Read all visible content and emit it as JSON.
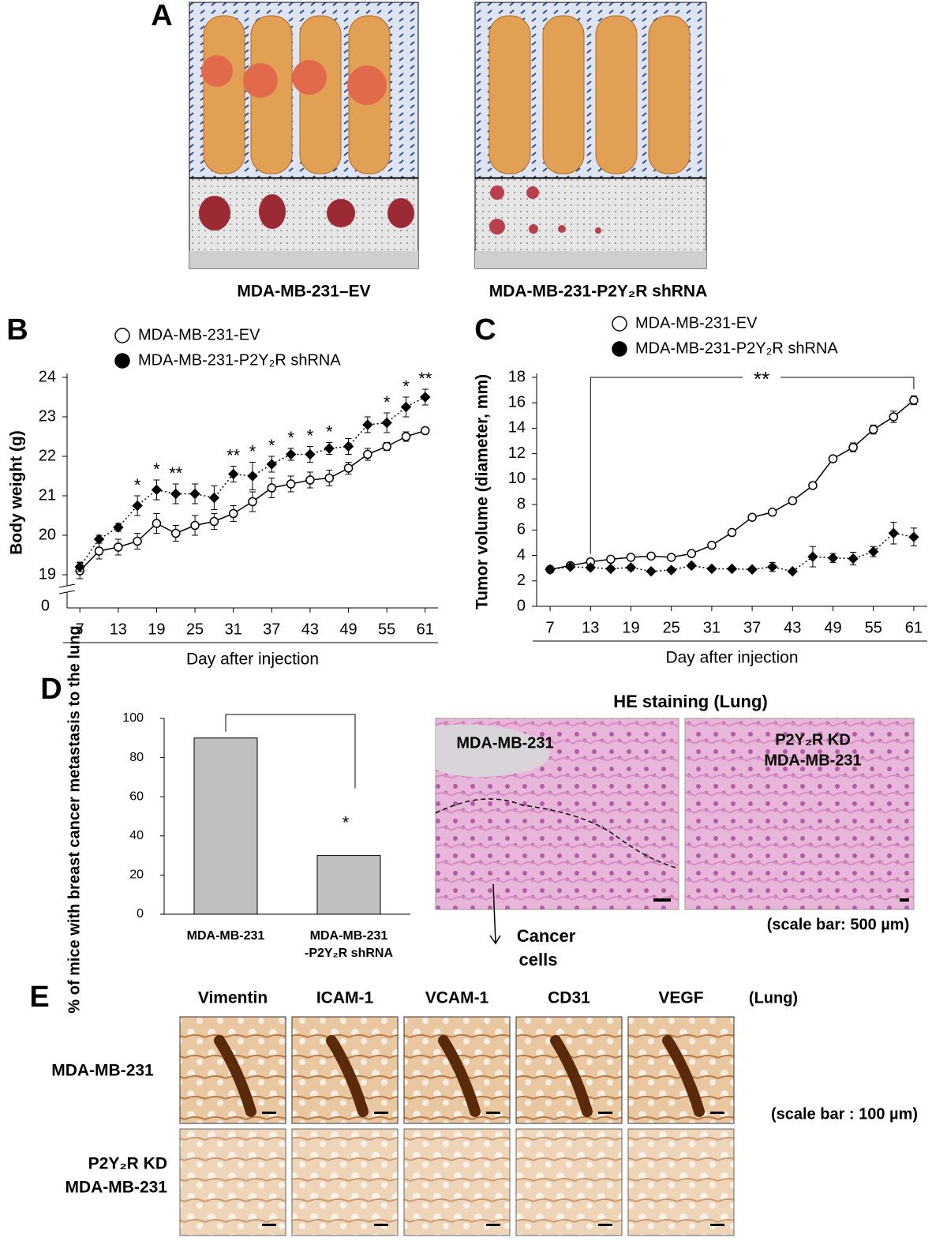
{
  "panel_letters": [
    "A",
    "B",
    "C",
    "D",
    "E"
  ],
  "panel_A": {
    "captions": [
      "MDA-MB-231–EV",
      "MDA-MB-231-P2Y₂R shRNA"
    ]
  },
  "chart_data": [
    {
      "type": "line",
      "ylabel": "Body weight (g)",
      "xlabel": "Day after injection",
      "x": [
        7,
        10,
        13,
        16,
        19,
        22,
        25,
        28,
        31,
        34,
        37,
        40,
        43,
        46,
        49,
        52,
        55,
        58,
        61
      ],
      "xlim": [
        5,
        63
      ],
      "xticks": [
        7,
        13,
        19,
        25,
        31,
        37,
        43,
        49,
        55,
        61
      ],
      "ylim": [
        19,
        24
      ],
      "yticks": [
        19,
        20,
        21,
        22,
        23,
        24
      ],
      "y_break_label": "0",
      "series": [
        {
          "name": "MDA-MB-231-EV",
          "color": "#ffffff",
          "line_style": "solid",
          "values": [
            19.1,
            19.6,
            19.7,
            19.85,
            20.3,
            20.05,
            20.25,
            20.35,
            20.55,
            20.85,
            21.2,
            21.3,
            21.4,
            21.45,
            21.7,
            22.05,
            22.25,
            22.5,
            22.65
          ],
          "errors": [
            0.2,
            0.2,
            0.2,
            0.2,
            0.25,
            0.2,
            0.25,
            0.2,
            0.2,
            0.25,
            0.25,
            0.2,
            0.2,
            0.2,
            0.15,
            0.15,
            0.1,
            0.12,
            0.05
          ]
        },
        {
          "name": "MDA-MB-231-P2Y₂R  shRNA",
          "color": "#000000",
          "line_style": "dotted",
          "values": [
            19.2,
            19.9,
            20.2,
            20.75,
            21.15,
            21.05,
            21.05,
            20.95,
            21.55,
            21.5,
            21.8,
            22.05,
            22.05,
            22.2,
            22.25,
            22.8,
            22.85,
            23.25,
            23.5
          ],
          "errors": [
            0.12,
            0.1,
            0.1,
            0.25,
            0.25,
            0.25,
            0.25,
            0.3,
            0.2,
            0.35,
            0.2,
            0.15,
            0.2,
            0.15,
            0.2,
            0.2,
            0.25,
            0.25,
            0.2
          ]
        }
      ],
      "annotations": [
        {
          "x": 16,
          "text": "*"
        },
        {
          "x": 19,
          "text": "*"
        },
        {
          "x": 22,
          "text": "**"
        },
        {
          "x": 31,
          "text": "**"
        },
        {
          "x": 34,
          "text": "*"
        },
        {
          "x": 37,
          "text": "*"
        },
        {
          "x": 40,
          "text": "*"
        },
        {
          "x": 43,
          "text": "*"
        },
        {
          "x": 46,
          "text": "*"
        },
        {
          "x": 55,
          "text": "*"
        },
        {
          "x": 58,
          "text": "*"
        },
        {
          "x": 61,
          "text": "**"
        }
      ]
    },
    {
      "type": "line",
      "ylabel": "Tumor volume (diameter, mm)",
      "xlabel": "Day after injection",
      "x": [
        7,
        10,
        13,
        16,
        19,
        22,
        25,
        28,
        31,
        34,
        37,
        40,
        43,
        46,
        49,
        52,
        55,
        58,
        61
      ],
      "xlim": [
        5,
        63
      ],
      "xticks": [
        7,
        13,
        19,
        25,
        31,
        37,
        43,
        49,
        55,
        61
      ],
      "ylim": [
        0,
        18
      ],
      "yticks": [
        0,
        2,
        4,
        6,
        8,
        10,
        12,
        14,
        16,
        18
      ],
      "series": [
        {
          "name": "MDA-MB-231-EV",
          "color": "#ffffff",
          "line_style": "solid",
          "values": [
            2.9,
            3.2,
            3.5,
            3.7,
            3.85,
            3.95,
            3.85,
            4.15,
            4.8,
            5.8,
            7.0,
            7.4,
            8.3,
            9.5,
            11.6,
            12.5,
            13.9,
            14.9,
            16.2
          ],
          "errors": [
            0.1,
            0.1,
            0.1,
            0.1,
            0.1,
            0.1,
            0.1,
            0.1,
            0.1,
            0.1,
            0.1,
            0.1,
            0.15,
            0.15,
            0.2,
            0.35,
            0.35,
            0.45,
            0.35
          ]
        },
        {
          "name": "MDA-MB-231-P2Y₂R  shRNA",
          "color": "#000000",
          "line_style": "dotted",
          "values": [
            2.9,
            3.1,
            3.05,
            2.95,
            3.05,
            2.75,
            2.85,
            3.2,
            2.95,
            2.95,
            2.9,
            3.1,
            2.75,
            3.9,
            3.8,
            3.75,
            4.3,
            5.75,
            5.45
          ],
          "errors": [
            0.1,
            0.1,
            0.2,
            0.1,
            0.2,
            0.1,
            0.2,
            0.2,
            0.1,
            0.15,
            0.1,
            0.35,
            0.1,
            0.8,
            0.35,
            0.5,
            0.4,
            0.85,
            0.7
          ]
        }
      ],
      "bracket": {
        "x": [
          13,
          61
        ],
        "text": "**"
      }
    },
    {
      "type": "bar",
      "ylabel": "% of mice with breast cancer metastasis to the lung",
      "categories": [
        [
          "MDA-MB-231"
        ],
        [
          "MDA-MB-231",
          "-P2Y₂R shRNA"
        ]
      ],
      "values": [
        90,
        30
      ],
      "color": "#c0c0c0",
      "ylim": [
        0,
        100
      ],
      "yticks": [
        0,
        20,
        40,
        60,
        80,
        100
      ],
      "bracket_text": "*"
    }
  ],
  "histology": {
    "title": "HE staining (Lung)",
    "image_labels": [
      [
        "MDA-MB-231"
      ],
      [
        "P2Y₂R KD",
        "MDA-MB-231"
      ]
    ],
    "pointer_label": [
      "Cancer",
      "cells"
    ],
    "scale_note": "(scale bar: 500 µm)"
  },
  "ihc": {
    "columns": [
      "Vimentin",
      "ICAM-1",
      "VCAM-1",
      "CD31",
      "VEGF"
    ],
    "tissue": "(Lung)",
    "rows": [
      [
        "MDA-MB-231"
      ],
      [
        "P2Y₂R KD",
        "MDA-MB-231"
      ]
    ],
    "scale_note": "(scale bar : 100 µm)"
  }
}
